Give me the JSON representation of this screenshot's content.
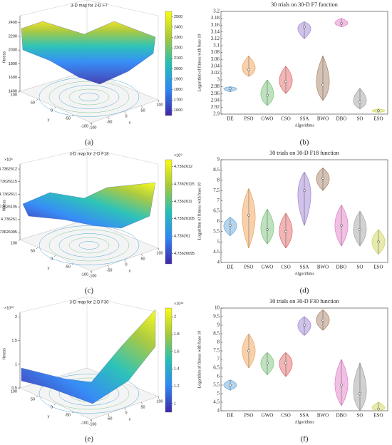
{
  "chart_data": [
    {
      "type": "surface",
      "title": "3-D map for 2-D F7",
      "panel_label": "(a)",
      "zlabel": "fitness",
      "xlabel": "x",
      "ylabel": "y",
      "zlim": [
        1400,
        2500
      ],
      "zticks": [
        1400,
        1600,
        1800,
        2000,
        2200,
        2400
      ],
      "xlim": [
        -100,
        100
      ],
      "xticks": [
        -100,
        -50,
        0,
        50,
        100
      ],
      "ylim": [
        -100,
        100
      ],
      "yticks": [
        -100,
        -50,
        0,
        50,
        100
      ],
      "clim": [
        1550,
        2550
      ],
      "cticks": [
        1600,
        1700,
        1800,
        1900,
        2000,
        2100,
        2200,
        2300,
        2400,
        2500
      ]
    },
    {
      "type": "violin",
      "title": "30 trials on 30-D F7 function",
      "panel_label": "(b)",
      "xlabel": "Algorithms",
      "ylabel": "Logarithm of fitness with base 10",
      "categories": [
        "DE",
        "PSO",
        "GWO",
        "CSO",
        "SSA",
        "BWO",
        "DBO",
        "SO",
        "ESO"
      ],
      "colors": [
        "#5aa0d8",
        "#f09a48",
        "#6cbf6c",
        "#e05a5a",
        "#9678d0",
        "#a07858",
        "#e070c0",
        "#9a9a9a",
        "#c8d048"
      ],
      "medians": [
        2.975,
        3.03,
        2.955,
        2.995,
        3.155,
        2.985,
        3.165,
        2.935,
        2.91
      ],
      "mins": [
        2.965,
        3.01,
        2.925,
        2.96,
        3.12,
        2.94,
        3.155,
        2.915,
        2.905
      ],
      "maxs": [
        2.98,
        3.07,
        3.0,
        3.04,
        3.17,
        3.07,
        3.18,
        2.975,
        2.915
      ],
      "ylim": [
        2.9,
        3.2
      ],
      "yticks": [
        2.9,
        2.92,
        2.94,
        2.96,
        2.98,
        3,
        3.02,
        3.04,
        3.06,
        3.08,
        3.1,
        3.12,
        3.14,
        3.16,
        3.18,
        3.2
      ]
    },
    {
      "type": "surface",
      "title": "3-D map for 2-D F18",
      "panel_label": "(c)",
      "zlabel": "fitness",
      "xlabel": "x",
      "ylabel": "y",
      "exponent": "×10⁹",
      "cbar_exponent": "×10⁹",
      "zlim": [
        4.73626092,
        4.73626122
      ],
      "zticks": [
        4.73626095,
        4.736261,
        4.73626105,
        4.7362611,
        4.73626115,
        4.7362612
      ],
      "xlim": [
        -100,
        100
      ],
      "xticks": [
        -100,
        -50,
        0,
        50,
        100
      ],
      "ylim": [
        -100,
        100
      ],
      "yticks": [
        -100,
        -50,
        0,
        50,
        100
      ],
      "clim": [
        4.73626092,
        4.73626122
      ],
      "cticks": [
        4.73626095,
        4.736261,
        4.73626105,
        4.7362611,
        4.73626115,
        4.7362612
      ]
    },
    {
      "type": "violin",
      "title": "30 trials on 30-D F18 function",
      "panel_label": "(d)",
      "xlabel": "Algorithms",
      "ylabel": "Logarithm of fitness with base 10",
      "categories": [
        "DE",
        "PSO",
        "GWO",
        "CSO",
        "SSA",
        "BWO",
        "DBO",
        "SO",
        "ESO"
      ],
      "colors": [
        "#5aa0d8",
        "#f09a48",
        "#6cbf6c",
        "#e05a5a",
        "#9678d0",
        "#a07858",
        "#e070c0",
        "#9a9a9a",
        "#c8d048"
      ],
      "medians": [
        5.8,
        6.3,
        5.6,
        5.5,
        7.5,
        8.1,
        5.8,
        5.6,
        5.0
      ],
      "mins": [
        5.3,
        4.7,
        4.9,
        4.7,
        5.8,
        7.5,
        4.8,
        4.8,
        4.4
      ],
      "maxs": [
        6.2,
        7.6,
        6.6,
        6.4,
        8.4,
        8.6,
        6.8,
        6.5,
        5.6
      ],
      "ylim": [
        4,
        9
      ],
      "yticks": [
        4,
        4.5,
        5,
        5.5,
        6,
        6.5,
        7,
        7.5,
        8,
        8.5,
        9
      ]
    },
    {
      "type": "surface",
      "title": "3-D map for 2-D F30",
      "panel_label": "(e)",
      "zlabel": "fitness",
      "xlabel": "x",
      "ylabel": "y",
      "exponent": "×10¹⁰",
      "cbar_exponent": "×10¹⁰",
      "zlim": [
        0.5,
        2.1
      ],
      "zticks": [
        0.5,
        1,
        1.5,
        2
      ],
      "xlim": [
        -100,
        100
      ],
      "xticks": [
        -100,
        -50,
        0,
        50,
        100
      ],
      "ylim": [
        -100,
        100
      ],
      "yticks": [
        -100,
        -50,
        0,
        50,
        100
      ],
      "clim": [
        0.9,
        2.1
      ],
      "cticks": [
        1,
        1.2,
        1.4,
        1.6,
        1.8,
        2
      ]
    },
    {
      "type": "violin",
      "title": "30 trials on 30-D F30 function",
      "panel_label": "(f)",
      "xlabel": "Algorithms",
      "ylabel": "Logarithm of fitness with base 10",
      "categories": [
        "DE",
        "PSO",
        "GWO",
        "CSO",
        "SSA",
        "BWO",
        "DBO",
        "SO",
        "ESO"
      ],
      "colors": [
        "#5aa0d8",
        "#f09a48",
        "#6cbf6c",
        "#e05a5a",
        "#9678d0",
        "#a07858",
        "#e070c0",
        "#9a9a9a",
        "#c8d048"
      ],
      "medians": [
        5.5,
        7.5,
        6.8,
        6.8,
        9.0,
        9.3,
        5.5,
        5.0,
        4.1
      ],
      "mins": [
        5.2,
        6.5,
        6.1,
        6.0,
        8.4,
        8.7,
        4.3,
        4.0,
        4.0
      ],
      "maxs": [
        5.8,
        8.5,
        7.4,
        7.4,
        9.5,
        9.9,
        7.0,
        6.8,
        4.5
      ],
      "ylim": [
        4,
        10
      ],
      "yticks": [
        4,
        4.5,
        5,
        5.5,
        6,
        6.5,
        7,
        7.5,
        8,
        8.5,
        9,
        9.5,
        10
      ]
    }
  ]
}
